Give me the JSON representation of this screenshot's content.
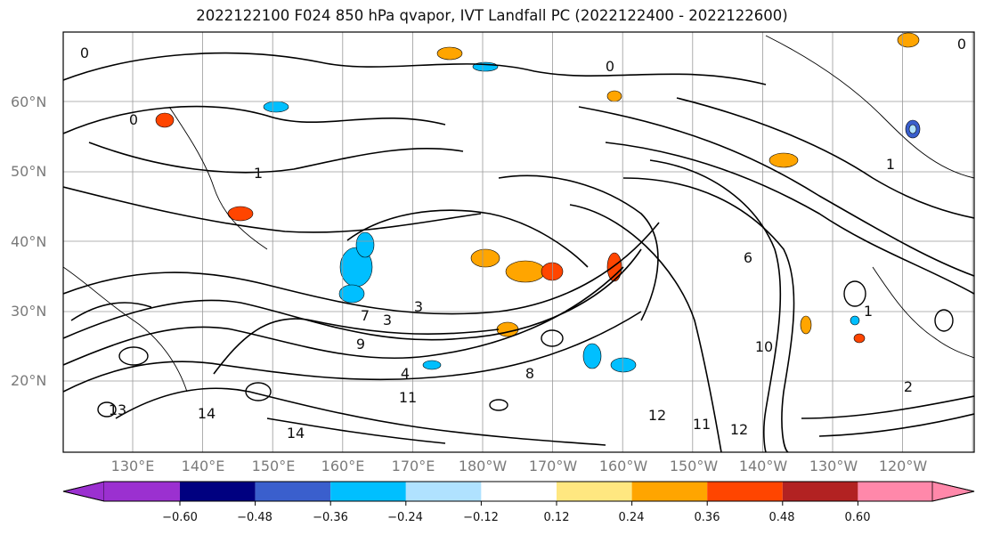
{
  "title": "2022122100 F024 850 hPa qvapor, IVT Landfall PC (2022122400 - 2022122600)",
  "map": {
    "lat_labels": [
      "60°N",
      "50°N",
      "40°N",
      "30°N",
      "20°N"
    ],
    "lon_labels": [
      "130°E",
      "140°E",
      "150°E",
      "160°E",
      "170°E",
      "180°W",
      "170°W",
      "160°W",
      "150°W",
      "140°W",
      "130°W",
      "120°W"
    ],
    "contour_labels": [
      "0",
      "0",
      "0",
      "1",
      "1",
      "3",
      "3",
      "4",
      "6",
      "7",
      "8",
      "9",
      "10",
      "11",
      "11",
      "12",
      "12",
      "13",
      "14",
      "14",
      "1",
      "2",
      "0"
    ]
  },
  "colorbar": {
    "ticks": [
      "−0.60",
      "−0.48",
      "−0.36",
      "−0.24",
      "−0.12",
      "0.12",
      "0.24",
      "0.36",
      "0.48",
      "0.60"
    ],
    "colors": [
      "#9b30d0",
      "#000080",
      "#3a5fcd",
      "#00bfff",
      "#b0e2ff",
      "#ffffff",
      "#ffe780",
      "#ffa500",
      "#ff4500",
      "#b22222",
      "#ff88aa"
    ]
  }
}
